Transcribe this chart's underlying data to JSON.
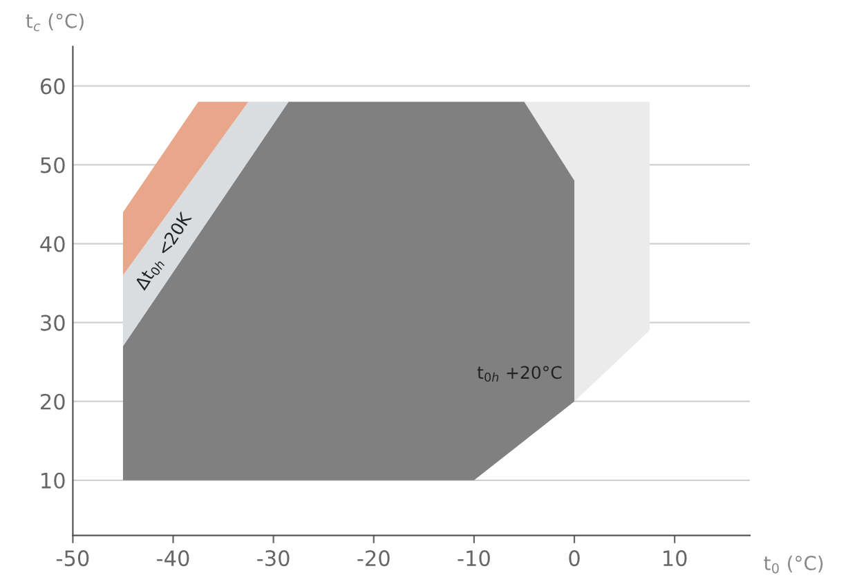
{
  "chart_data": {
    "type": "area",
    "xlabel": "t$_{0}$ (°C)",
    "ylabel": "t$_{c}$ (°C)",
    "xlim": [
      -50,
      17.5
    ],
    "ylim": [
      3,
      65
    ],
    "xticks": [
      -50,
      -40,
      -30,
      -20,
      -10,
      0,
      10
    ],
    "yticks": [
      10,
      20,
      30,
      40,
      50,
      60
    ],
    "grid": "y",
    "series": [
      {
        "color": "#ebebeb",
        "x": [
          -5,
          7.5,
          7.5,
          0,
          0
        ],
        "values": [
          58,
          58,
          29,
          20,
          48
        ]
      },
      {
        "color": "#808080",
        "x": [
          -45,
          -10,
          0,
          0,
          -5,
          -28.5,
          -45
        ],
        "values": [
          10,
          10,
          20,
          48,
          58,
          58,
          27
        ]
      },
      {
        "color": "#d9dde0",
        "x": [
          -45,
          -28.5,
          -32.5,
          -45
        ],
        "values": [
          27,
          58,
          58,
          36
        ]
      },
      {
        "color": "#e8a68a",
        "x": [
          -45,
          -32.5,
          -37.5,
          -45
        ],
        "values": [
          36,
          58,
          58,
          44
        ]
      }
    ],
    "annotations": [
      "Δt$_{0h}$ <20K",
      "t$_{0h}$ +20°C"
    ]
  }
}
